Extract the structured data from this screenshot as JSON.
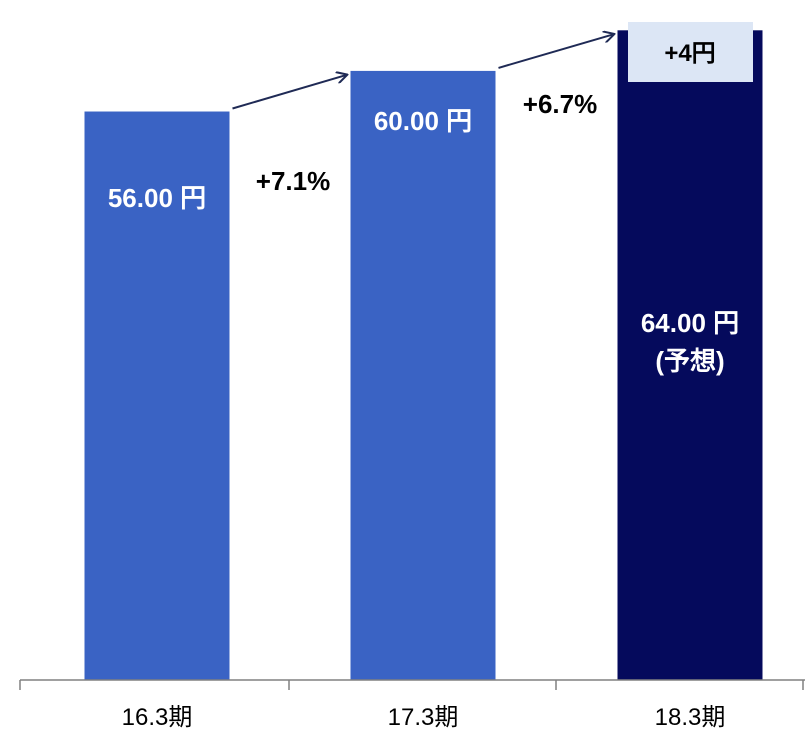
{
  "chart_data": {
    "type": "bar",
    "categories": [
      "16.3期",
      "17.3期",
      "18.3期"
    ],
    "values": [
      56.0,
      60.0,
      64.0
    ],
    "ylim": [
      0,
      66
    ],
    "grid": false,
    "bar_labels": [
      "56.00 円",
      "60.00 円",
      "64.00 円"
    ],
    "forecast_note": "(予想)",
    "growth_labels": [
      "+7.1%",
      "+6.7%"
    ],
    "increase_badge": "+4円",
    "colors": {
      "actual": "#3a63c4",
      "forecast": "#050a5c",
      "badge": "#dce6f5",
      "arrow": "#1f2a55",
      "axis": "#808080"
    }
  }
}
